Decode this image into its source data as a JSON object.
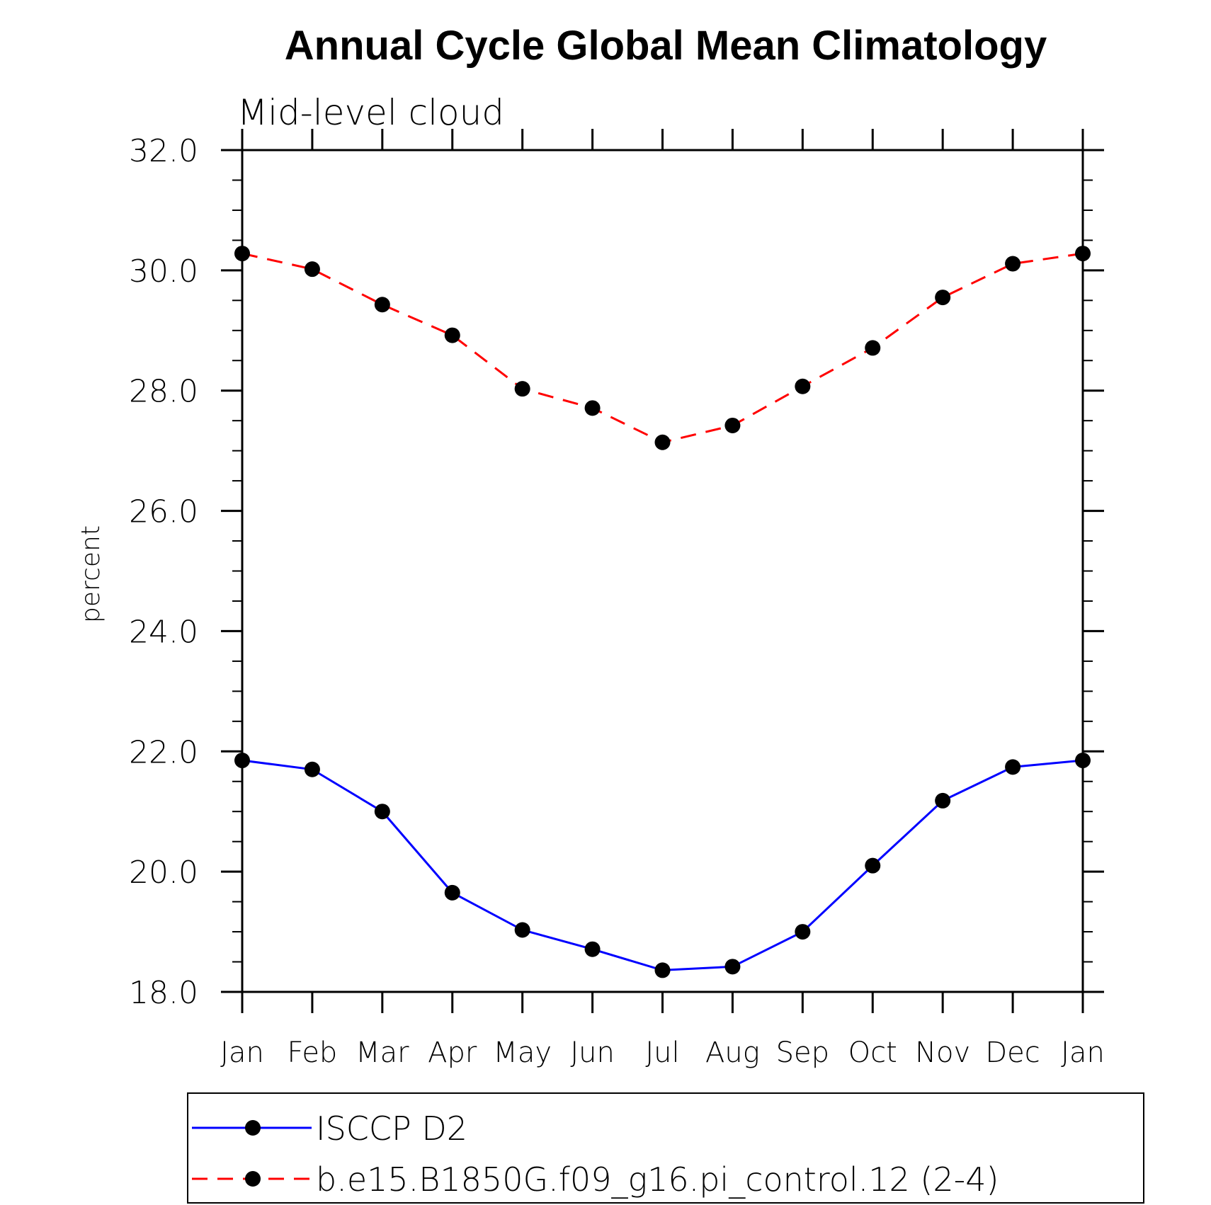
{
  "chart_data": {
    "type": "line",
    "title": "Annual Cycle Global Mean Climatology",
    "subtitle": "Mid-level cloud",
    "xlabel": "",
    "ylabel": "percent",
    "categories": [
      "Jan",
      "Feb",
      "Mar",
      "Apr",
      "May",
      "Jun",
      "Jul",
      "Aug",
      "Sep",
      "Oct",
      "Nov",
      "Dec",
      "Jan"
    ],
    "ylim": [
      18.0,
      32.0
    ],
    "yticks": [
      "18.0",
      "20.0",
      "22.0",
      "24.0",
      "26.0",
      "28.0",
      "30.0",
      "32.0"
    ],
    "grid": false,
    "legend_position": "bottom",
    "series": [
      {
        "name": "ISCCP D2",
        "color": "#0000ff",
        "dash": "solid",
        "values": [
          21.85,
          21.7,
          21.0,
          19.65,
          19.03,
          18.71,
          18.36,
          18.42,
          19.0,
          20.1,
          21.18,
          21.74,
          21.85
        ]
      },
      {
        "name": "b.e15.B1850G.f09_g16.pi_control.12 (2-4)",
        "color": "#ff0000",
        "dash": "dashed",
        "values": [
          30.28,
          30.02,
          29.43,
          28.92,
          28.03,
          27.71,
          27.14,
          27.42,
          28.07,
          28.71,
          29.55,
          30.11,
          30.28
        ]
      }
    ]
  }
}
